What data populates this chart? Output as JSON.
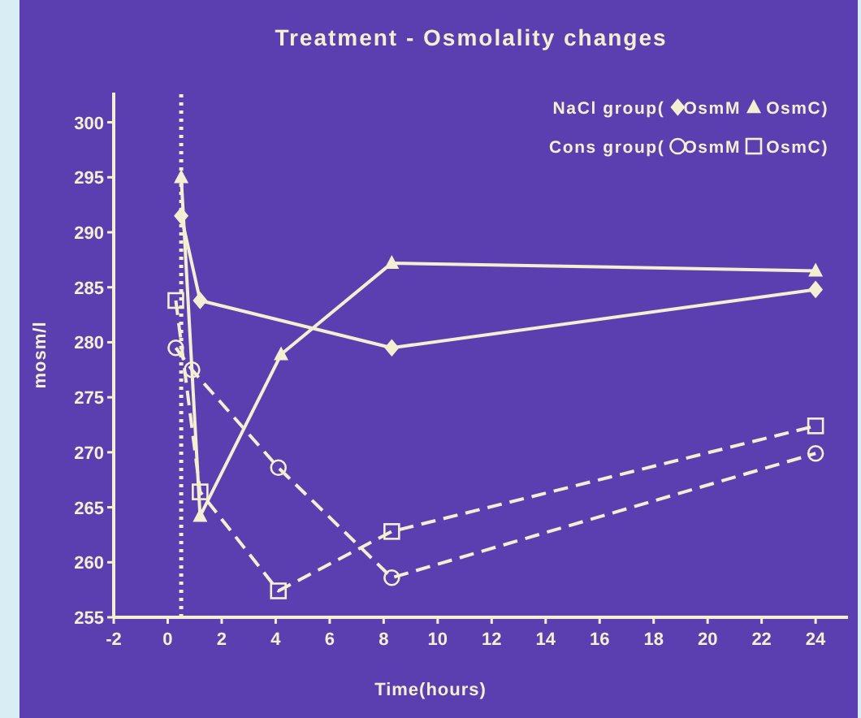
{
  "chart_data": {
    "type": "line",
    "title": "Treatment - Osmolality changes",
    "xlabel": "Time(hours)",
    "ylabel": "mosm/l",
    "xlim": [
      -2,
      25.2
    ],
    "xticks": [
      -2,
      0,
      2,
      4,
      6,
      8,
      10,
      12,
      14,
      16,
      18,
      20,
      22,
      24
    ],
    "ylim": [
      255,
      302.7
    ],
    "yticks": [
      255,
      260,
      265,
      270,
      275,
      280,
      285,
      290,
      295,
      300
    ],
    "grid": false,
    "legend": "top right",
    "annotations": [
      "NaCl group(",
      "Cons group("
    ],
    "ref_lines": [
      {
        "axis": "x",
        "value": 0.5,
        "line_style": "dotted",
        "color": "#f4efd2"
      }
    ],
    "series": [
      {
        "name": "OsmM",
        "color": "#f4efd2",
        "marker": "diamond",
        "line_style": "solid",
        "x": [
          0.5,
          1.2,
          8.3,
          24
        ],
        "values": [
          291.5,
          283.8,
          279.5,
          284.8
        ]
      },
      {
        "name": "OsmC)",
        "color": "#f4efd2",
        "marker": "triangle",
        "line_style": "solid",
        "x": [
          0.5,
          1.2,
          4.2,
          8.3,
          24
        ],
        "values": [
          295,
          264.2,
          278.9,
          287.2,
          286.5
        ]
      },
      {
        "name": "OsmM",
        "color": "#f4efd2",
        "marker": "circle",
        "line_style": "dashed",
        "x": [
          0.3,
          0.9,
          4.1,
          8.3,
          24
        ],
        "values": [
          279.5,
          277.5,
          268.6,
          258.6,
          269.9
        ]
      },
      {
        "name": "OsmC)",
        "color": "#f4efd2",
        "marker": "square",
        "line_style": "dashed",
        "x": [
          0.3,
          1.2,
          4.1,
          8.3,
          24
        ],
        "values": [
          283.8,
          266.4,
          257.4,
          262.8,
          272.4
        ]
      }
    ]
  }
}
